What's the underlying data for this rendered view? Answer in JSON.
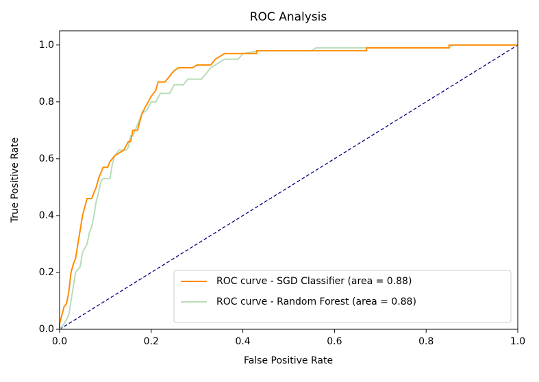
{
  "chart_data": {
    "type": "line",
    "title": "ROC Analysis",
    "x_label": "False Positive Rate",
    "y_label": "True Positive Rate",
    "xlim": [
      0,
      1
    ],
    "ylim": [
      0,
      1.05
    ],
    "xticks": [
      {
        "value": 0,
        "label": "0.0"
      },
      0.2,
      0.4,
      0.6,
      0.8,
      {
        "value": 1,
        "label": "1.0"
      }
    ],
    "yticks": [
      {
        "value": 0,
        "label": "0.0"
      },
      0.2,
      0.4,
      0.6,
      0.8,
      {
        "value": 1,
        "label": "1.0"
      }
    ],
    "legend": "lower right",
    "series": [
      {
        "name": "ROC curve - SGD Classifier (area = 0.88)",
        "color": "#ff8c00",
        "x": [
          0,
          0,
          0.005,
          0.01,
          0.015,
          0.02,
          0.025,
          0.03,
          0.035,
          0.04,
          0.045,
          0.05,
          0.055,
          0.06,
          0.07,
          0.075,
          0.08,
          0.085,
          0.09,
          0.095,
          0.105,
          0.11,
          0.12,
          0.13,
          0.14,
          0.15,
          0.155,
          0.16,
          0.17,
          0.18,
          0.19,
          0.2,
          0.21,
          0.215,
          0.23,
          0.24,
          0.25,
          0.26,
          0.29,
          0.3,
          0.33,
          0.34,
          0.36,
          0.43,
          0.43,
          0.67,
          0.67,
          0.85,
          0.85,
          1
        ],
        "values": [
          0,
          0.02,
          0.05,
          0.08,
          0.09,
          0.13,
          0.2,
          0.23,
          0.25,
          0.3,
          0.35,
          0.4,
          0.43,
          0.46,
          0.46,
          0.48,
          0.5,
          0.53,
          0.55,
          0.57,
          0.57,
          0.59,
          0.61,
          0.62,
          0.63,
          0.66,
          0.66,
          0.7,
          0.7,
          0.76,
          0.79,
          0.82,
          0.84,
          0.87,
          0.87,
          0.89,
          0.91,
          0.92,
          0.92,
          0.93,
          0.93,
          0.95,
          0.97,
          0.97,
          0.98,
          0.98,
          0.99,
          0.99,
          1,
          1
        ]
      },
      {
        "name": "ROC curve - Random Forest (area = 0.88)",
        "color": "#b8dcb8",
        "x": [
          0,
          0.01,
          0.02,
          0.025,
          0.03,
          0.035,
          0.045,
          0.05,
          0.06,
          0.065,
          0.07,
          0.075,
          0.08,
          0.085,
          0.09,
          0.095,
          0.11,
          0.115,
          0.12,
          0.13,
          0.145,
          0.15,
          0.155,
          0.16,
          0.165,
          0.17,
          0.18,
          0.19,
          0.2,
          0.21,
          0.22,
          0.24,
          0.25,
          0.27,
          0.28,
          0.31,
          0.32,
          0.33,
          0.35,
          0.36,
          0.39,
          0.4,
          0.44,
          0.55,
          0.56,
          0.85,
          0.86,
          1
        ],
        "values": [
          0,
          0.02,
          0.05,
          0.1,
          0.15,
          0.2,
          0.22,
          0.27,
          0.3,
          0.34,
          0.36,
          0.4,
          0.45,
          0.48,
          0.52,
          0.53,
          0.53,
          0.58,
          0.61,
          0.63,
          0.63,
          0.64,
          0.68,
          0.68,
          0.7,
          0.72,
          0.76,
          0.77,
          0.8,
          0.8,
          0.83,
          0.83,
          0.86,
          0.86,
          0.88,
          0.88,
          0.9,
          0.92,
          0.94,
          0.95,
          0.95,
          0.97,
          0.98,
          0.98,
          0.99,
          0.99,
          1,
          1
        ]
      }
    ],
    "reference_line": {
      "x": [
        0,
        1
      ],
      "values": [
        0,
        1
      ],
      "color": "#000080"
    }
  }
}
